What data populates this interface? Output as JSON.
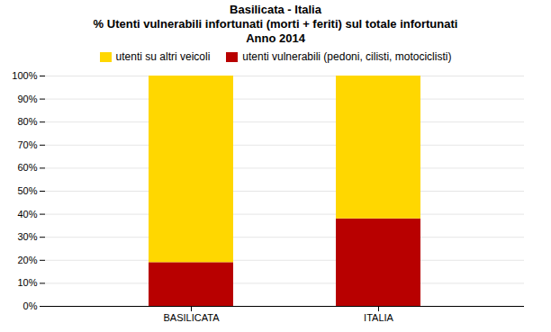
{
  "chart_data": {
    "type": "bar",
    "title": [
      "Basilicata - Italia",
      "% Utenti vulnerabili infortunati (morti + feriti) sul totale infortunati",
      "Anno 2014"
    ],
    "categories": [
      "BASILICATA",
      "ITALIA"
    ],
    "series": [
      {
        "name": "utenti vulnerabili (pedoni, cilisti, motociclisti)",
        "color": "#B80000",
        "values": [
          19.0,
          38.0
        ]
      },
      {
        "name": "utenti su altri veicoli",
        "color": "#FFD700",
        "values": [
          81.0,
          62.0
        ]
      }
    ],
    "stacked": true,
    "ylim": [
      0,
      100
    ],
    "yticks": [
      {
        "value": 0,
        "label": "0%"
      },
      {
        "value": 10,
        "label": "10%"
      },
      {
        "value": 20,
        "label": "20%"
      },
      {
        "value": 30,
        "label": "30%"
      },
      {
        "value": 40,
        "label": "40%"
      },
      {
        "value": 50,
        "label": "50%"
      },
      {
        "value": 60,
        "label": "60%"
      },
      {
        "value": 70,
        "label": "70%"
      },
      {
        "value": 80,
        "label": "80%"
      },
      {
        "value": 90,
        "label": "90%"
      },
      {
        "value": 100,
        "label": "100%"
      }
    ],
    "grid": true,
    "legend": "top"
  }
}
